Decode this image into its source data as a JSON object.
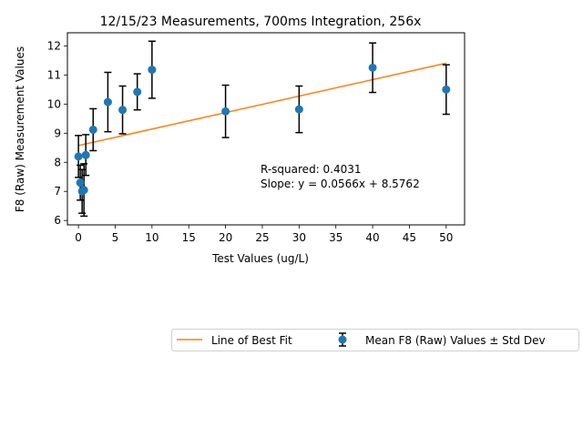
{
  "chart_data": {
    "type": "scatter",
    "title": "12/15/23 Measurements, 700ms Integration, 256x",
    "xlabel": "Test Values (ug/L)",
    "ylabel": "F8 (Raw) Measurement Values",
    "xlim": [
      -1.5,
      52.5
    ],
    "ylim": [
      5.85,
      12.45
    ],
    "xticks": [
      0,
      5,
      10,
      15,
      20,
      25,
      30,
      35,
      40,
      45,
      50
    ],
    "yticks": [
      6,
      7,
      8,
      9,
      10,
      11,
      12
    ],
    "grid": false,
    "legend_position": "bottom-right, outside plot",
    "series": [
      {
        "name": "Mean F8 (Raw) Values ± Std Dev",
        "color": "#1f77b4",
        "points": [
          {
            "x": 0,
            "y": 8.2,
            "err": 0.72
          },
          {
            "x": 0.25,
            "y": 7.3,
            "err": 0.6
          },
          {
            "x": 0.5,
            "y": 7.0,
            "err": 0.75
          },
          {
            "x": 0.75,
            "y": 7.05,
            "err": 0.9
          },
          {
            "x": 1,
            "y": 8.25,
            "err": 0.7
          },
          {
            "x": 2,
            "y": 9.12,
            "err": 0.72
          },
          {
            "x": 4,
            "y": 10.07,
            "err": 1.02
          },
          {
            "x": 6,
            "y": 9.8,
            "err": 0.82
          },
          {
            "x": 8,
            "y": 10.42,
            "err": 0.62
          },
          {
            "x": 10,
            "y": 11.18,
            "err": 0.98
          },
          {
            "x": 20,
            "y": 9.75,
            "err": 0.9
          },
          {
            "x": 30,
            "y": 9.82,
            "err": 0.8
          },
          {
            "x": 40,
            "y": 11.25,
            "err": 0.85
          },
          {
            "x": 50,
            "y": 10.5,
            "err": 0.85
          }
        ]
      },
      {
        "name": "Line of Best Fit",
        "type": "line",
        "color": "#ff7f0e",
        "slope": 0.0566,
        "intercept": 8.5762,
        "x_range": [
          0,
          50
        ]
      }
    ],
    "annotation": {
      "line1": "R-squared: 0.4031",
      "line2": "Slope: y = 0.0566x + 8.5762"
    },
    "legend": {
      "entries": [
        "Line of Best Fit",
        "Mean F8 (Raw) Values ± Std Dev"
      ]
    }
  }
}
